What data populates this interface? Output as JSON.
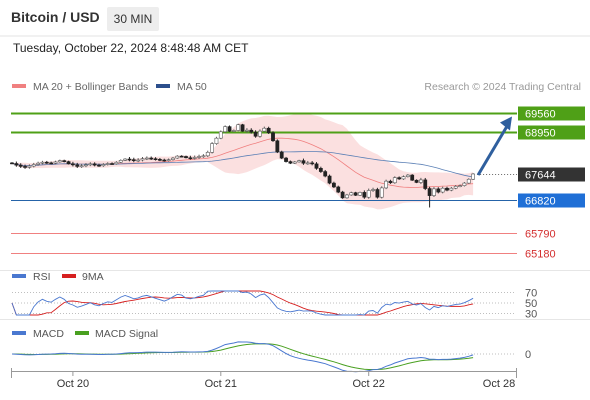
{
  "header": {
    "title": "Bitcoin / USD",
    "timeframe": "30 MIN",
    "datetime": "Tuesday, October 22, 2024 8:48:48 AM CET",
    "credit": "Research © 2024 Trading Central"
  },
  "colors": {
    "up": "#5a5a5a",
    "down": "#222222",
    "bollinger_fill": "#fbe0e0",
    "ma20": "#f07f7f",
    "ma50": "#5a7fb5",
    "resistance": "#4fa017",
    "support": "#2563a8",
    "target": "#f08080",
    "current": "#333333",
    "arrow": "#2f5f9e",
    "rsi": "#4a78d0",
    "rsi_ma": "#d62020",
    "macd": "#4a78d0",
    "macd_signal": "#49a020"
  },
  "chart_data": {
    "type": "candlestick",
    "price_range": [
      64900,
      70200
    ],
    "legend": [
      {
        "name": "MA 20 + Bollinger Bands",
        "color": "#f08080"
      },
      {
        "name": "MA 50",
        "color": "#2c4f8c"
      }
    ],
    "levels": [
      {
        "value": 69560,
        "label": "69560",
        "kind": "resistance"
      },
      {
        "value": 68950,
        "label": "68950",
        "kind": "resistance"
      },
      {
        "value": 67644,
        "label": "67644",
        "kind": "current"
      },
      {
        "value": 66820,
        "label": "66820",
        "kind": "support"
      },
      {
        "value": 65790,
        "label": "65790",
        "kind": "target"
      },
      {
        "value": 65180,
        "label": "65180",
        "kind": "target"
      }
    ],
    "closes": [
      67970,
      67920,
      67880,
      67850,
      67890,
      67940,
      67980,
      68010,
      67990,
      67980,
      68020,
      68060,
      68030,
      67960,
      67930,
      67880,
      67900,
      67930,
      67960,
      67920,
      67900,
      67940,
      67970,
      67960,
      68010,
      68070,
      68110,
      68090,
      68060,
      68080,
      68120,
      68140,
      68120,
      68100,
      68080,
      68060,
      68090,
      68140,
      68200,
      68190,
      68150,
      68140,
      68160,
      68190,
      68210,
      68320,
      68590,
      68760,
      68960,
      69120,
      68980,
      69000,
      69180,
      68980,
      69010,
      68950,
      68820,
      68980,
      69070,
      68930,
      68680,
      68330,
      68140,
      68030,
      67980,
      68020,
      68060,
      67980,
      67990,
      67960,
      67820,
      67720,
      67580,
      67360,
      67240,
      67080,
      66900,
      66990,
      67060,
      66980,
      67070,
      66920,
      67130,
      67160,
      66920,
      67210,
      67420,
      67370,
      67530,
      67490,
      67560,
      67610,
      67450,
      67380,
      67460,
      67190,
      66970,
      67180,
      67080,
      67200,
      67140,
      67200,
      67260,
      67280,
      67360,
      67480,
      67644
    ],
    "rsi": {
      "series": [
        "RSI",
        "9MA"
      ],
      "levels": [
        "70",
        "50",
        "30"
      ],
      "level_values": [
        70,
        50,
        30
      ]
    },
    "macd": {
      "series": [
        "MACD",
        "MACD Signal"
      ],
      "level": "0",
      "level_value": 0
    },
    "x_axis": {
      "ticks": [
        {
          "label": "Oct 20",
          "index": 14
        },
        {
          "label": "Oct 21",
          "index": 48
        },
        {
          "label": "Oct 22",
          "index": 82
        }
      ],
      "end_label": "Oct 28"
    }
  }
}
